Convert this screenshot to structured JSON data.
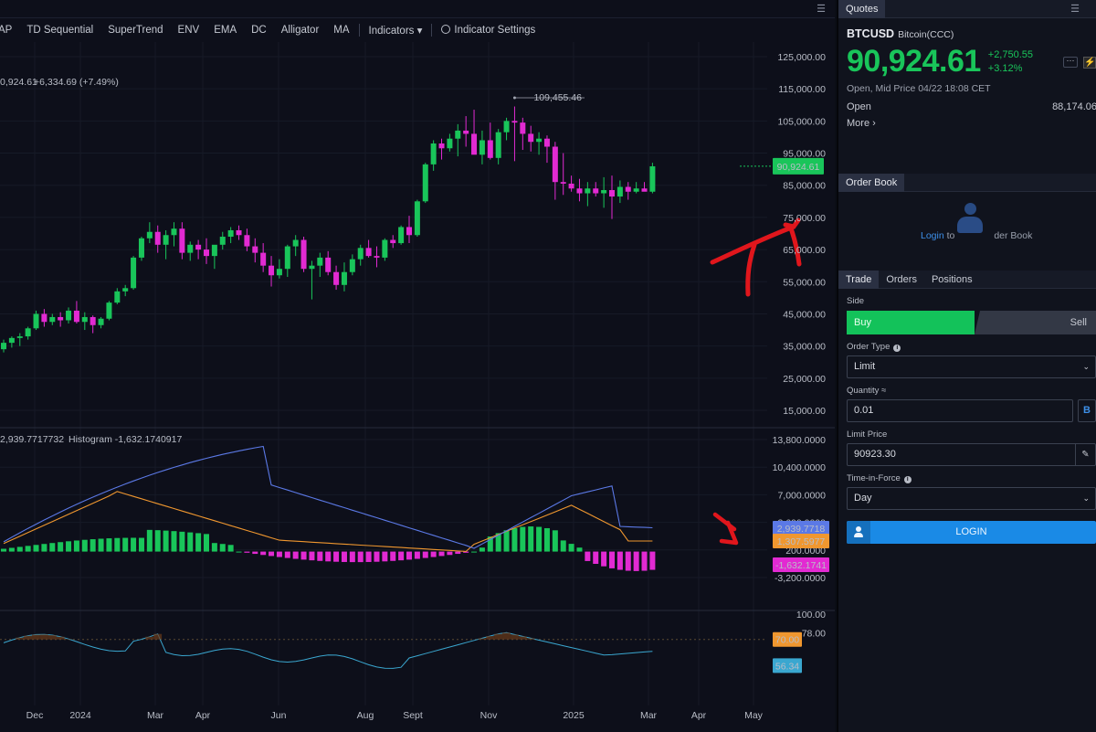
{
  "toolbar": {
    "items": [
      "AP",
      "TD Sequential",
      "SuperTrend",
      "ENV",
      "EMA",
      "DC",
      "Alligator",
      "MA"
    ],
    "indicators_label": "Indicators ▾",
    "indicator_settings_label": "Indicator Settings"
  },
  "chart": {
    "price_info": {
      "value": "0,924.61",
      "change": "+6,334.69 (+7.49%)"
    },
    "high_marker": "109,455.46",
    "current_price_tag": "90,924.61",
    "price_axis": [
      "125,000.00",
      "115,000.00",
      "105,000.00",
      "95,000.00",
      "85,000.00",
      "75,000.00",
      "65,000.00",
      "55,000.00",
      "45,000.00",
      "35,000.00",
      "25,000.00",
      "15,000.00"
    ],
    "macd_legend": {
      "value": "2,939.7717732",
      "histogram": "Histogram -1,632.1740917"
    },
    "macd_axis": [
      "13,800.0000",
      "10,400.0000",
      "7,000.0000",
      "3,600.0000",
      "200.0000",
      "-3,200.0000"
    ],
    "macd_tags": {
      "macd": "2,939.7718",
      "signal": "1,307.5977",
      "histogram": "-1,632.1741"
    },
    "rsi_axis": [
      "100.00",
      "78.00"
    ],
    "rsi_tags": {
      "upper": "70.00",
      "value": "56.34"
    },
    "time_axis": [
      "Dec",
      "2024",
      "Mar",
      "Apr",
      "Jun",
      "Aug",
      "Sept",
      "Nov",
      "2025",
      "Mar",
      "Apr",
      "May"
    ],
    "colors": {
      "up": "#19c55a",
      "down": "#e22ad2",
      "macd": "#5b79e6",
      "signal": "#f0972f",
      "rsi": "#3aa7d0",
      "annotation": "#e0161c"
    }
  },
  "chart_data": {
    "type": "candlestick",
    "price_range": [
      15000,
      125000
    ],
    "candles_ohlc": [
      [
        34000,
        37000,
        33000,
        36000
      ],
      [
        36000,
        38000,
        34500,
        37500
      ],
      [
        37500,
        39000,
        35000,
        38000
      ],
      [
        38000,
        41000,
        37000,
        40500
      ],
      [
        40500,
        46000,
        40000,
        45000
      ],
      [
        45000,
        46500,
        41000,
        42500
      ],
      [
        42500,
        45000,
        41500,
        44000
      ],
      [
        44000,
        45500,
        41000,
        43000
      ],
      [
        43000,
        47000,
        42000,
        46000
      ],
      [
        46000,
        49000,
        42000,
        42500
      ],
      [
        42500,
        45500,
        40000,
        44000
      ],
      [
        44000,
        44500,
        39000,
        41500
      ],
      [
        41500,
        44000,
        40500,
        43500
      ],
      [
        43500,
        49000,
        43000,
        48500
      ],
      [
        48500,
        53000,
        48000,
        52000
      ],
      [
        52000,
        54000,
        50500,
        53000
      ],
      [
        53000,
        63000,
        52500,
        62500
      ],
      [
        62500,
        69000,
        61500,
        68500
      ],
      [
        68500,
        73500,
        67000,
        70500
      ],
      [
        70500,
        72500,
        64000,
        66500
      ],
      [
        66500,
        71000,
        62000,
        69500
      ],
      [
        69500,
        73500,
        66000,
        71500
      ],
      [
        71500,
        73500,
        62000,
        64000
      ],
      [
        64000,
        67500,
        61500,
        66500
      ],
      [
        66500,
        68000,
        62000,
        65000
      ],
      [
        65000,
        68500,
        60500,
        63000
      ],
      [
        63000,
        65000,
        59000,
        66500
      ],
      [
        66500,
        70500,
        65000,
        69000
      ],
      [
        69000,
        72000,
        67000,
        71000
      ],
      [
        71000,
        72500,
        68000,
        69500
      ],
      [
        69500,
        71500,
        64500,
        66000
      ],
      [
        66000,
        68500,
        61000,
        64000
      ],
      [
        64000,
        67000,
        58000,
        60000
      ],
      [
        60000,
        63000,
        53500,
        57000
      ],
      [
        57000,
        62000,
        56000,
        59000
      ],
      [
        59000,
        66500,
        56500,
        66000
      ],
      [
        66000,
        69500,
        63000,
        68000
      ],
      [
        68000,
        69000,
        58000,
        59000
      ],
      [
        59000,
        61500,
        49500,
        60000
      ],
      [
        60000,
        64000,
        56500,
        62500
      ],
      [
        62500,
        64500,
        57000,
        58000
      ],
      [
        58000,
        60000,
        52500,
        54000
      ],
      [
        54000,
        61000,
        52000,
        58000
      ],
      [
        58000,
        63500,
        57000,
        62000
      ],
      [
        62000,
        66500,
        60000,
        65500
      ],
      [
        65500,
        68000,
        62500,
        63000
      ],
      [
        63000,
        66000,
        59500,
        62500
      ],
      [
        62500,
        68500,
        61500,
        68000
      ],
      [
        68000,
        69500,
        65500,
        67000
      ],
      [
        67000,
        72500,
        66500,
        72000
      ],
      [
        72000,
        75500,
        67000,
        69500
      ],
      [
        69500,
        80500,
        69000,
        80000
      ],
      [
        80000,
        92000,
        79500,
        91500
      ],
      [
        91500,
        99000,
        89500,
        98000
      ],
      [
        98000,
        99500,
        93000,
        96500
      ],
      [
        96500,
        101000,
        95500,
        99500
      ],
      [
        99500,
        104000,
        94000,
        102000
      ],
      [
        102000,
        106500,
        97000,
        101000
      ],
      [
        101000,
        108500,
        95000,
        94500
      ],
      [
        94500,
        102000,
        91500,
        99000
      ],
      [
        99000,
        104500,
        93000,
        93500
      ],
      [
        93500,
        102500,
        91500,
        101500
      ],
      [
        101500,
        106000,
        99000,
        105000
      ],
      [
        105000,
        109500,
        92500,
        104500
      ],
      [
        104500,
        106000,
        96000,
        101000
      ],
      [
        101000,
        103500,
        95500,
        98500
      ],
      [
        98500,
        101500,
        94500,
        99500
      ],
      [
        99500,
        100500,
        92000,
        97000
      ],
      [
        97000,
        98500,
        80500,
        86000
      ],
      [
        86000,
        95000,
        82000,
        85500
      ],
      [
        85500,
        88000,
        83000,
        84000
      ],
      [
        84000,
        87000,
        80000,
        82500
      ],
      [
        82500,
        86000,
        78500,
        84000
      ],
      [
        84000,
        86000,
        81500,
        82500
      ],
      [
        82500,
        87500,
        78000,
        83500
      ],
      [
        83500,
        88000,
        74500,
        81500
      ],
      [
        81500,
        86500,
        79500,
        84500
      ],
      [
        84500,
        86000,
        80500,
        83000
      ],
      [
        83000,
        86000,
        82500,
        84000
      ],
      [
        84000,
        86000,
        83500,
        83000
      ],
      [
        83000,
        92000,
        82500,
        90900
      ]
    ],
    "macd_indicator": {
      "macd_last": 2939.7718,
      "signal_last": 1307.5977,
      "histogram_last": -1632.1741
    },
    "rsi_indicator": {
      "upper_band": 70.0,
      "value_last": 56.34
    }
  },
  "quotes": {
    "tab": "Quotes",
    "symbol": "BTCUSD",
    "description": "Bitcoin(CCC)",
    "price": "90,924.61",
    "change": "+2,750.55",
    "change_pct": "+3.12%",
    "sub": "Open, Mid Price 04/22 18:08 CET",
    "open_label": "Open",
    "open_value": "88,174.06",
    "more_label": "More ›"
  },
  "orderbook": {
    "tab": "Order Book",
    "login_text": "Login",
    "to_text": "to",
    "rest_text": "der Book"
  },
  "trade": {
    "tabs": [
      "Trade",
      "Orders",
      "Positions"
    ],
    "side_label": "Side",
    "buy_label": "Buy",
    "sell_label": "Sell",
    "order_type_label": "Order Type",
    "order_type_value": "Limit",
    "quantity_label": "Quantity ≈",
    "quantity_value": "0.01",
    "quantity_unit": "B",
    "limit_price_label": "Limit Price",
    "limit_price_value": "90923.30",
    "tif_label": "Time-in-Force",
    "tif_value": "Day",
    "login_button": "LOGIN"
  }
}
